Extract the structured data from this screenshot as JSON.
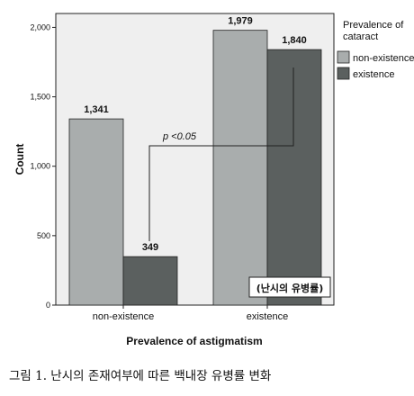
{
  "chart_data": {
    "type": "bar",
    "xlabel": "Prevalence of astigmatism",
    "ylabel": "Count",
    "categories": [
      "non-existence",
      "existence"
    ],
    "series": [
      {
        "name": "non-existence",
        "values": [
          1341,
          1979
        ],
        "color": "#a9adad"
      },
      {
        "name": "existence",
        "values": [
          349,
          1840
        ],
        "color": "#5b605f"
      }
    ],
    "data_labels": [
      [
        "1,341",
        "1,979"
      ],
      [
        "349",
        "1,840"
      ]
    ],
    "ylim": [
      0,
      2100
    ],
    "yticks": [
      0,
      500,
      1000,
      1500,
      2000
    ],
    "ytick_labels": [
      "0",
      "500",
      "1,000",
      "1,500",
      "2,000"
    ],
    "legend": {
      "title": "Prevalence of cataract",
      "position": "right"
    },
    "annotation": "p <0.05",
    "inset_label": "(난시의 유병률)",
    "plot_background": "#efefef",
    "grid": false
  },
  "caption": "그림 1. 난시의 존재여부에 따른 백내장 유병률 변화"
}
